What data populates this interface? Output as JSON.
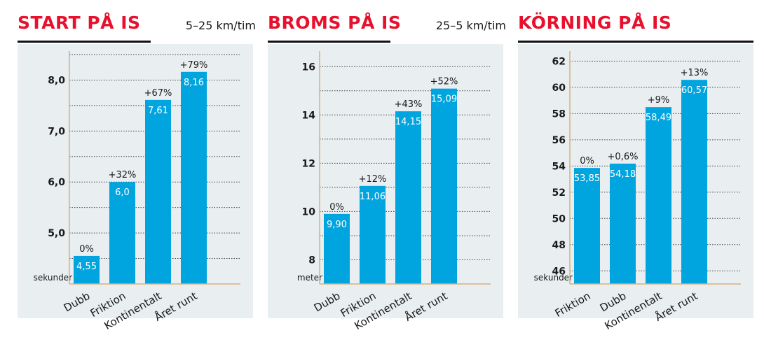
{
  "chart_data": [
    {
      "type": "bar",
      "title": "START PÅ IS",
      "subtitle": "5–25 km/tim",
      "ylabel": "sekunder",
      "ylim": [
        4.0,
        8.5
      ],
      "yticks": [
        "5,0",
        "6,0",
        "7,0",
        "8,0"
      ],
      "ytick_values": [
        5,
        6,
        7,
        8
      ],
      "grid_values": [
        4.5,
        5,
        5.5,
        6,
        6.5,
        7,
        7.5,
        8,
        8.5
      ],
      "categories": [
        "Dubb",
        "Friktion",
        "Kontinentalt",
        "Året runt"
      ],
      "values": [
        4.55,
        6.0,
        7.61,
        8.16
      ],
      "value_labels": [
        "4,55",
        "6,0",
        "7,61",
        "8,16"
      ],
      "annotations": [
        "0%",
        "+32%",
        "+67%",
        "+79%"
      ]
    },
    {
      "type": "bar",
      "title": "BROMS PÅ IS",
      "subtitle": "25–5 km/tim",
      "ylabel": "meter",
      "ylim": [
        7.0,
        16.5
      ],
      "yticks": [
        "8",
        "10",
        "12",
        "14",
        "16"
      ],
      "ytick_values": [
        8,
        10,
        12,
        14,
        16
      ],
      "grid_values": [
        8,
        9,
        10,
        11,
        12,
        13,
        14,
        15,
        16
      ],
      "categories": [
        "Dubb",
        "Friktion",
        "Kontinentalt",
        "Året runt"
      ],
      "values": [
        9.9,
        11.06,
        14.15,
        15.09
      ],
      "value_labels": [
        "9,90",
        "11,06",
        "14,15",
        "15,09"
      ],
      "annotations": [
        "0%",
        "+12%",
        "+43%",
        "+52%"
      ]
    },
    {
      "type": "bar",
      "title": "KÖRNING PÅ IS",
      "subtitle": "",
      "ylabel": "sekunder",
      "ylim": [
        45.0,
        62.5
      ],
      "yticks": [
        "46",
        "48",
        "50",
        "52",
        "54",
        "56",
        "58",
        "60",
        "62"
      ],
      "ytick_values": [
        46,
        48,
        50,
        52,
        54,
        56,
        58,
        60,
        62
      ],
      "grid_values": [
        46,
        48,
        50,
        52,
        54,
        56,
        58,
        60,
        62
      ],
      "categories": [
        "Friktion",
        "Dubb",
        "Kontinentalt",
        "Året runt"
      ],
      "values": [
        53.85,
        54.18,
        58.49,
        60.57
      ],
      "value_labels": [
        "53,85",
        "54,18",
        "58,49",
        "60,57"
      ],
      "annotations": [
        "0%",
        "+0,6%",
        "+9%",
        "+13%"
      ]
    }
  ],
  "colors": {
    "bar": "#00a5df",
    "title": "#e8112d",
    "panel_bg": "#e9eef1",
    "axis": "#d8b07a",
    "grid": "#444444",
    "text": "#1a1a1a"
  }
}
